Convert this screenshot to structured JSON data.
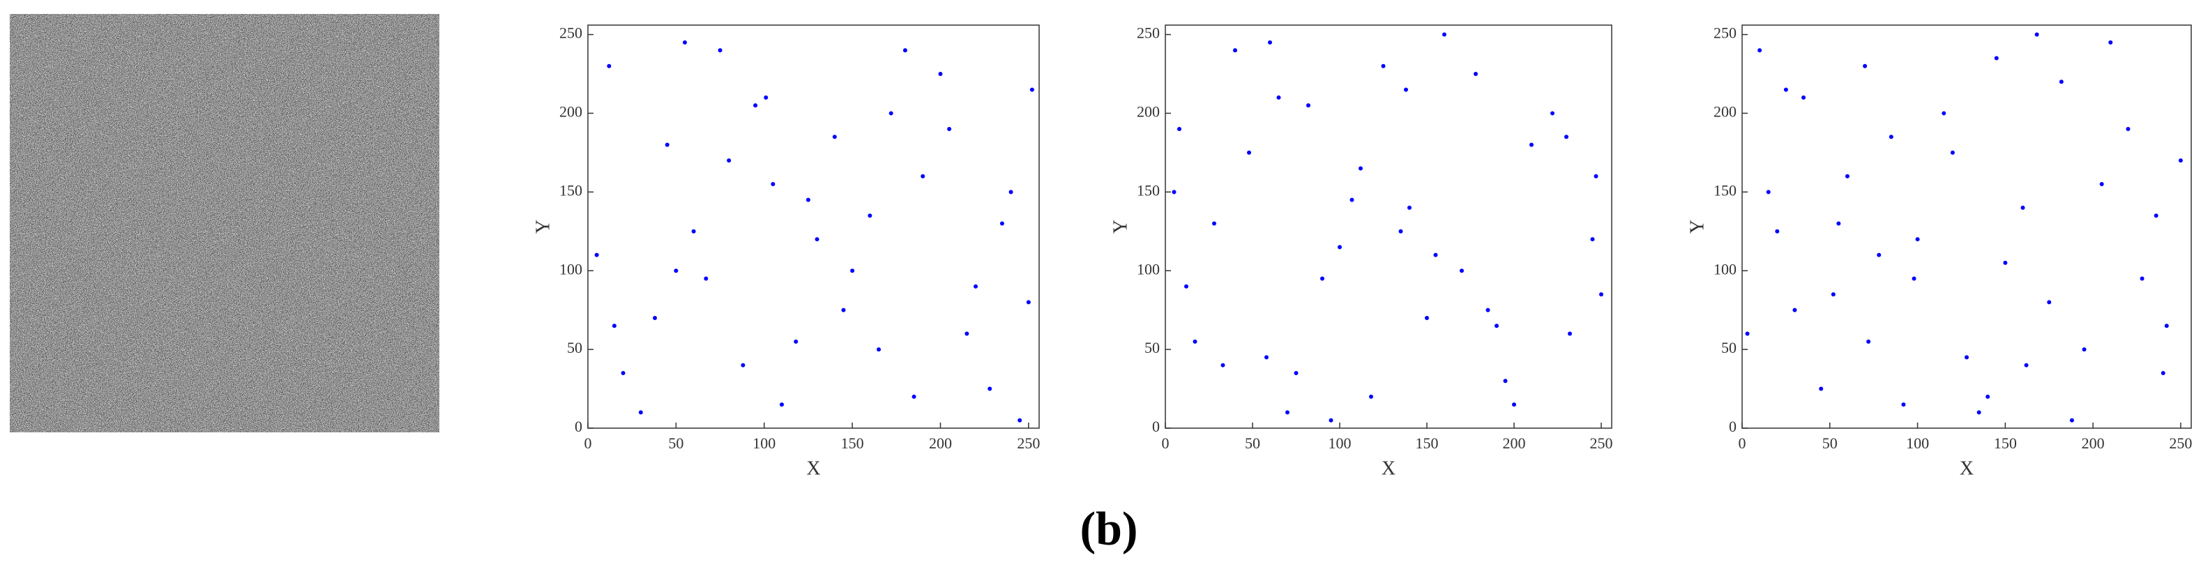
{
  "figure_label": "(b)",
  "chart_data": [
    {
      "type": "scatter",
      "xlabel": "X",
      "ylabel": "Y",
      "color": "#0000ff",
      "xlim": [
        0,
        256
      ],
      "ylim": [
        0,
        256
      ],
      "xticks": [
        0,
        50,
        100,
        150,
        200,
        250
      ],
      "yticks": [
        0,
        50,
        100,
        150,
        200,
        250
      ],
      "x": [
        12,
        45,
        88,
        130,
        172,
        215,
        240,
        30,
        67,
        101,
        145,
        190,
        228,
        5,
        55,
        118,
        160,
        205,
        250,
        20,
        80,
        110,
        150,
        180,
        235,
        38,
        95,
        125,
        165,
        200,
        245,
        60,
        140,
        220,
        15,
        75,
        185,
        105,
        252,
        50
      ],
      "y": [
        230,
        180,
        40,
        120,
        200,
        60,
        150,
        10,
        95,
        210,
        75,
        160,
        25,
        110,
        245,
        55,
        135,
        190,
        80,
        35,
        170,
        15,
        100,
        240,
        130,
        70,
        205,
        145,
        50,
        225,
        5,
        125,
        185,
        90,
        65,
        240,
        20,
        155,
        215,
        100
      ]
    },
    {
      "type": "scatter",
      "xlabel": "X",
      "ylabel": "Y",
      "color": "#0000ff",
      "xlim": [
        0,
        256
      ],
      "ylim": [
        0,
        256
      ],
      "xticks": [
        0,
        50,
        100,
        150,
        200,
        250
      ],
      "yticks": [
        0,
        50,
        100,
        150,
        200,
        250
      ],
      "x": [
        200,
        8,
        150,
        60,
        245,
        33,
        112,
        178,
        90,
        222,
        17,
        140,
        70,
        250,
        125,
        48,
        195,
        100,
        160,
        5,
        232,
        82,
        118,
        170,
        28,
        210,
        58,
        138,
        247,
        95,
        185,
        40,
        155,
        75,
        230,
        12,
        107,
        190,
        65,
        135
      ],
      "y": [
        15,
        190,
        70,
        245,
        120,
        40,
        165,
        225,
        95,
        200,
        55,
        140,
        10,
        85,
        230,
        175,
        30,
        115,
        250,
        150,
        60,
        205,
        20,
        100,
        130,
        180,
        45,
        215,
        160,
        5,
        75,
        240,
        110,
        35,
        185,
        90,
        145,
        65,
        210,
        125
      ]
    },
    {
      "type": "scatter",
      "xlabel": "X",
      "ylabel": "Y",
      "color": "#0000ff",
      "xlim": [
        0,
        256
      ],
      "ylim": [
        0,
        256
      ],
      "xticks": [
        0,
        50,
        100,
        150,
        200,
        250
      ],
      "yticks": [
        0,
        50,
        100,
        150,
        200,
        250
      ],
      "x": [
        100,
        240,
        25,
        175,
        60,
        135,
        210,
        3,
        85,
        160,
        228,
        45,
        115,
        195,
        70,
        250,
        150,
        30,
        92,
        182,
        15,
        128,
        220,
        55,
        168,
        242,
        78,
        140,
        10,
        205,
        52,
        120,
        188,
        35,
        162,
        98,
        236,
        20,
        145,
        72
      ],
      "y": [
        120,
        35,
        215,
        80,
        160,
        10,
        245,
        60,
        185,
        140,
        95,
        25,
        200,
        50,
        230,
        170,
        105,
        75,
        15,
        220,
        150,
        45,
        190,
        130,
        250,
        65,
        110,
        20,
        240,
        155,
        85,
        175,
        5,
        210,
        40,
        95,
        135,
        125,
        235,
        55
      ]
    }
  ]
}
